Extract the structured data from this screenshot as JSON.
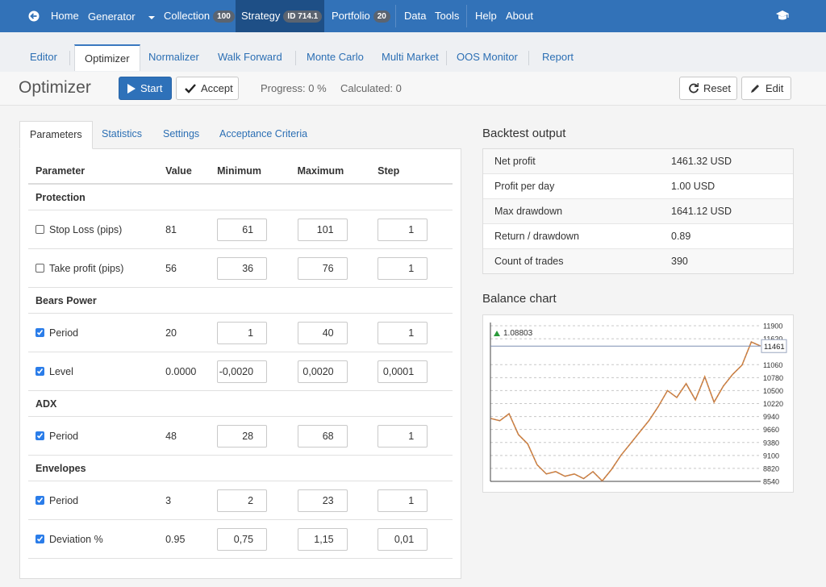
{
  "navbar": {
    "items": [
      {
        "label": "Home"
      },
      {
        "label": "Generator"
      },
      {
        "label": "Collection",
        "badge": "100"
      },
      {
        "label": "Strategy",
        "badge": "ID 714.1",
        "active": true
      },
      {
        "label": "Portfolio",
        "badge": "20"
      },
      {
        "label": "Data"
      },
      {
        "label": "Tools"
      },
      {
        "label": "Help"
      },
      {
        "label": "About"
      }
    ]
  },
  "subtabs": {
    "items": [
      "Editor",
      "Optimizer",
      "Normalizer",
      "Walk Forward",
      "Monte Carlo",
      "Multi Market",
      "OOS Monitor",
      "Report"
    ],
    "active": 1
  },
  "toolbar": {
    "title": "Optimizer",
    "start": "Start",
    "accept": "Accept",
    "progress": "Progress: 0 %",
    "calculated": "Calculated: 0",
    "reset": "Reset",
    "edit": "Edit"
  },
  "parameters_panel": {
    "tabs": [
      "Parameters",
      "Statistics",
      "Settings",
      "Acceptance Criteria"
    ],
    "active_tab": 0,
    "columns": [
      "Parameter",
      "Value",
      "Minimum",
      "Maximum",
      "Step"
    ],
    "groups": [
      {
        "name": "Protection",
        "rows": [
          {
            "label": "Stop Loss (pips)",
            "checked": false,
            "value": "81",
            "minimum": "61",
            "maximum": "101",
            "step": "1"
          },
          {
            "label": "Take profit (pips)",
            "checked": false,
            "value": "56",
            "minimum": "36",
            "maximum": "76",
            "step": "1"
          }
        ]
      },
      {
        "name": "Bears Power",
        "rows": [
          {
            "label": "Period",
            "checked": true,
            "value": "20",
            "minimum": "1",
            "maximum": "40",
            "step": "1"
          },
          {
            "label": "Level",
            "checked": true,
            "value": "0.0000",
            "minimum": "-0,0020",
            "maximum": "0,0020",
            "step": "0,0001"
          }
        ]
      },
      {
        "name": "ADX",
        "rows": [
          {
            "label": "Period",
            "checked": true,
            "value": "48",
            "minimum": "28",
            "maximum": "68",
            "step": "1"
          }
        ]
      },
      {
        "name": "Envelopes",
        "rows": [
          {
            "label": "Period",
            "checked": true,
            "value": "3",
            "minimum": "2",
            "maximum": "23",
            "step": "1"
          },
          {
            "label": "Deviation %",
            "checked": true,
            "value": "0.95",
            "minimum": "0,75",
            "maximum": "1,15",
            "step": "0,01"
          }
        ]
      }
    ]
  },
  "backtest_output": {
    "title": "Backtest output",
    "rows": [
      [
        "Net profit",
        "1461.32 USD"
      ],
      [
        "Profit per day",
        "1.00 USD"
      ],
      [
        "Max drawdown",
        "1641.12 USD"
      ],
      [
        "Return / drawdown",
        "0.89"
      ],
      [
        "Count of trades",
        "390"
      ]
    ]
  },
  "balance_chart": {
    "title": "Balance chart",
    "chart_data": {
      "type": "line",
      "marker_label": "1.08803",
      "current_value": 11461,
      "values": [
        9900,
        9850,
        10000,
        9550,
        9350,
        8900,
        8700,
        8750,
        8650,
        8700,
        8600,
        8750,
        8550,
        8800,
        9100,
        9350,
        9600,
        9850,
        10150,
        10500,
        10350,
        10650,
        10300,
        10800,
        10250,
        10600,
        10850,
        11050,
        11550,
        11461
      ],
      "color": "#d9853b",
      "grid": true,
      "ylim": [
        8540,
        11900
      ],
      "yticks": [
        8540,
        8820,
        9100,
        9380,
        9660,
        9940,
        10220,
        10500,
        10780,
        11060,
        11620,
        11900
      ]
    }
  }
}
